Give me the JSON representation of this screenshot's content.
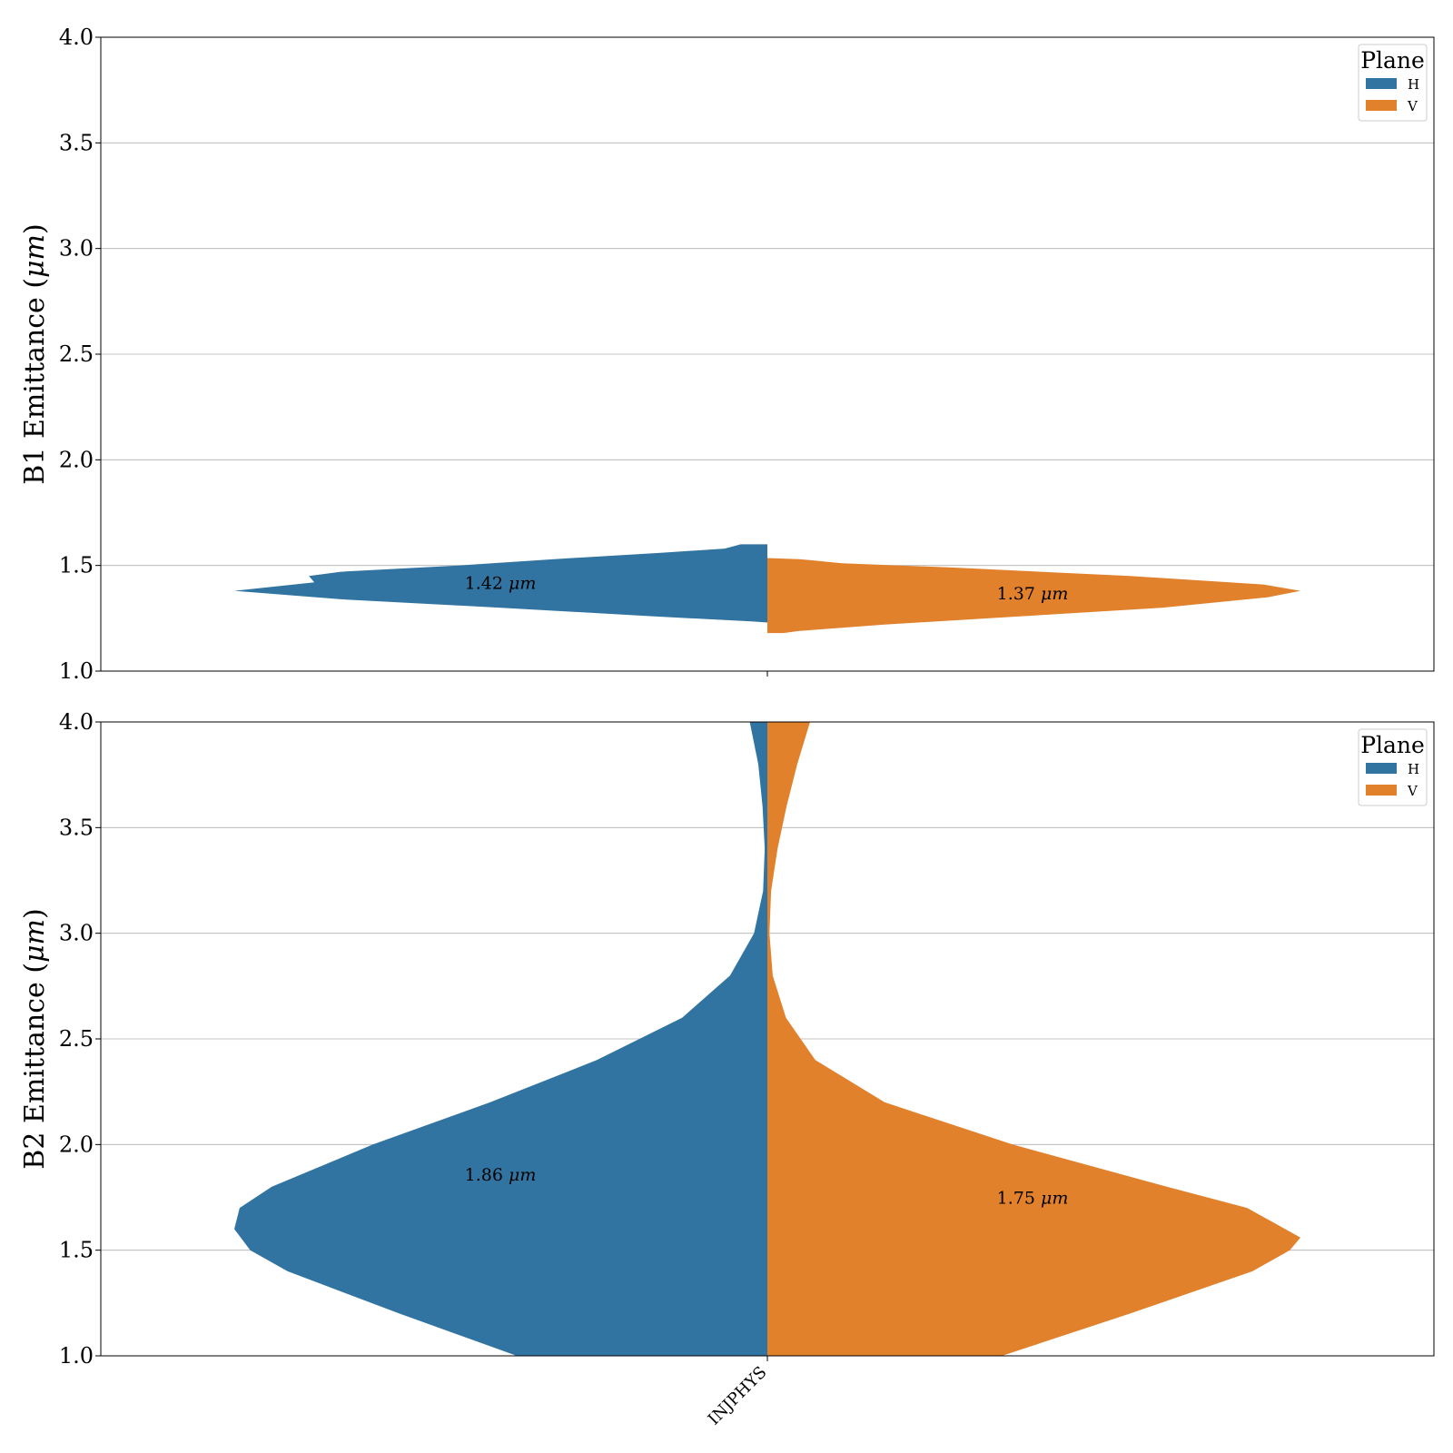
{
  "chart_data": [
    {
      "type": "violin",
      "ylabel": "B1 Emittance (μm)",
      "ylim": [
        1.0,
        4.0
      ],
      "yticks": [
        "1.0",
        "1.5",
        "2.0",
        "2.5",
        "3.0",
        "3.5",
        "4.0"
      ],
      "grid": "horizontal",
      "category": "INJPHYS",
      "legend": {
        "title": "Plane",
        "placement": "top-right",
        "entries": [
          "H",
          "V"
        ]
      },
      "series": [
        {
          "name": "H",
          "color": "#3274a1",
          "median_label": "1.42 μm",
          "median_value": 1.42,
          "label_y": 1.42,
          "density": [
            [
              1.23,
              0.0
            ],
            [
              1.235,
              0.03
            ],
            [
              1.26,
              0.22
            ],
            [
              1.3,
              0.5
            ],
            [
              1.34,
              0.8
            ],
            [
              1.38,
              1.0
            ],
            [
              1.42,
              0.85
            ],
            [
              1.45,
              0.86
            ],
            [
              1.47,
              0.8
            ],
            [
              1.5,
              0.58
            ],
            [
              1.53,
              0.4
            ],
            [
              1.56,
              0.2
            ],
            [
              1.58,
              0.08
            ],
            [
              1.6,
              0.05
            ]
          ]
        },
        {
          "name": "V",
          "color": "#e1812c",
          "median_label": "1.37 μm",
          "median_value": 1.37,
          "label_y": 1.37,
          "density": [
            [
              1.18,
              0.03
            ],
            [
              1.19,
              0.06
            ],
            [
              1.22,
              0.22
            ],
            [
              1.26,
              0.48
            ],
            [
              1.3,
              0.74
            ],
            [
              1.35,
              0.94
            ],
            [
              1.38,
              1.0
            ],
            [
              1.41,
              0.93
            ],
            [
              1.45,
              0.68
            ],
            [
              1.49,
              0.35
            ],
            [
              1.51,
              0.14
            ],
            [
              1.53,
              0.06
            ],
            [
              1.535,
              0.0
            ]
          ]
        }
      ]
    },
    {
      "type": "violin",
      "ylabel": "B2 Emittance (μm)",
      "ylim": [
        1.0,
        4.0
      ],
      "yticks": [
        "1.0",
        "1.5",
        "2.0",
        "2.5",
        "3.0",
        "3.5",
        "4.0"
      ],
      "grid": "horizontal",
      "category": "INJPHYS",
      "legend": {
        "title": "Plane",
        "placement": "top-right",
        "entries": [
          "H",
          "V"
        ]
      },
      "series": [
        {
          "name": "H",
          "color": "#3274a1",
          "median_label": "1.86 μm",
          "median_value": 1.86,
          "label_y": 1.86,
          "density": [
            [
              1.0,
              0.47
            ],
            [
              1.2,
              0.69
            ],
            [
              1.4,
              0.9
            ],
            [
              1.5,
              0.97
            ],
            [
              1.6,
              1.0
            ],
            [
              1.7,
              0.99
            ],
            [
              1.8,
              0.93
            ],
            [
              2.0,
              0.74
            ],
            [
              2.2,
              0.52
            ],
            [
              2.4,
              0.32
            ],
            [
              2.6,
              0.16
            ],
            [
              2.8,
              0.07
            ],
            [
              3.0,
              0.025
            ],
            [
              3.2,
              0.008
            ],
            [
              3.4,
              0.005
            ],
            [
              3.6,
              0.009
            ],
            [
              3.8,
              0.017
            ],
            [
              4.0,
              0.033
            ]
          ]
        },
        {
          "name": "V",
          "color": "#e1812c",
          "median_label": "1.75 μm",
          "median_value": 1.75,
          "label_y": 1.75,
          "density": [
            [
              1.0,
              0.44
            ],
            [
              1.2,
              0.68
            ],
            [
              1.4,
              0.91
            ],
            [
              1.5,
              0.98
            ],
            [
              1.56,
              1.0
            ],
            [
              1.7,
              0.9
            ],
            [
              1.8,
              0.75
            ],
            [
              2.0,
              0.46
            ],
            [
              2.2,
              0.22
            ],
            [
              2.4,
              0.09
            ],
            [
              2.6,
              0.035
            ],
            [
              2.8,
              0.01
            ],
            [
              3.0,
              0.004
            ],
            [
              3.2,
              0.007
            ],
            [
              3.4,
              0.019
            ],
            [
              3.6,
              0.036
            ],
            [
              3.8,
              0.056
            ],
            [
              4.0,
              0.08
            ]
          ]
        }
      ]
    }
  ]
}
